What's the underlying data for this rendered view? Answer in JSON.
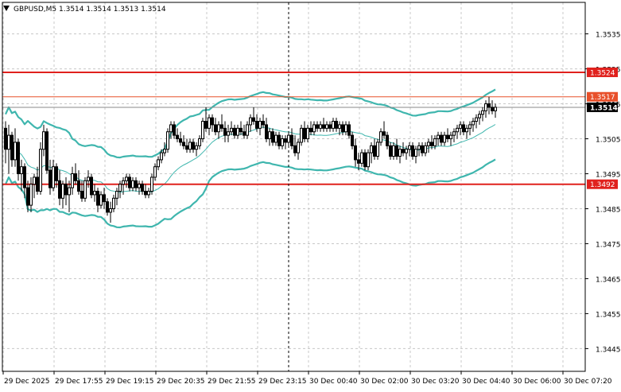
{
  "chart_title": "GBPUSD,M5  1.3514 1.3514 1.3513 1.3514",
  "colors": {
    "band": "#3fb6ae",
    "support_resistance": "#e0211d",
    "level_line": "#e8502a",
    "candles": "#000000",
    "price_tag": "#000000"
  },
  "icons": {
    "indicator_arrow": "triangle-down-icon"
  },
  "chart_data": {
    "type": "candlestick",
    "title": "GBPUSD,M5  1.3514 1.3514 1.3513 1.3514",
    "xlabel": "",
    "ylabel": "",
    "ylim": [
      1.34385,
      1.3544
    ],
    "ytick_values": [
      1.3535,
      1.3525,
      1.3515,
      1.3505,
      1.3495,
      1.3485,
      1.3475,
      1.3465,
      1.3455,
      1.3445
    ],
    "yticks": [
      "1.3535",
      "1.3525",
      "1.3515",
      "1.3505",
      "1.3495",
      "1.3485",
      "1.3475",
      "1.3465",
      "1.3455",
      "1.3445"
    ],
    "xticks": [
      "29 Dec 2025",
      "29 Dec 17:55",
      "29 Dec 19:15",
      "29 Dec 20:35",
      "29 Dec 21:55",
      "29 Dec 23:15",
      "30 Dec 00:40",
      "30 Dec 02:00",
      "30 Dec 03:20",
      "30 Dec 04:40",
      "30 Dec 06:00",
      "30 Dec 07:20"
    ],
    "xtick_bar_index": [
      0,
      16,
      32,
      48,
      64,
      80,
      96,
      112,
      128,
      144,
      160,
      176
    ],
    "grid": true,
    "price_tags": [
      {
        "label": "1.3524",
        "value": 1.3524,
        "style": "red"
      },
      {
        "label": "1.3517",
        "value": 1.3517,
        "style": "orange"
      },
      {
        "label": "1.3514",
        "value": 1.3514,
        "style": "black"
      },
      {
        "label": "1.3492",
        "value": 1.3492,
        "style": "red"
      }
    ],
    "horizontal_lines": [
      {
        "value": 1.3524,
        "style": "red-thick"
      },
      {
        "value": 1.3517,
        "style": "orange-thin"
      },
      {
        "value": 1.3514,
        "style": "gray-thin"
      },
      {
        "value": 1.3492,
        "style": "red-thick"
      }
    ],
    "vertical_line_bar_index": 89,
    "ohlc": [
      [
        1.3508,
        1.351,
        1.3498,
        1.3502
      ],
      [
        1.3502,
        1.3509,
        1.3495,
        1.3506
      ],
      [
        1.3506,
        1.3507,
        1.3497,
        1.3499
      ],
      [
        1.3499,
        1.3508,
        1.3497,
        1.3504
      ],
      [
        1.3504,
        1.3505,
        1.3493,
        1.3495
      ],
      [
        1.3495,
        1.3499,
        1.349,
        1.3497
      ],
      [
        1.3497,
        1.3498,
        1.3488,
        1.3491
      ],
      [
        1.3491,
        1.3493,
        1.3484,
        1.3486
      ],
      [
        1.3486,
        1.3494,
        1.3484,
        1.3492
      ],
      [
        1.3492,
        1.3495,
        1.3488,
        1.3494
      ],
      [
        1.3494,
        1.3497,
        1.3489,
        1.349
      ],
      [
        1.349,
        1.3504,
        1.3489,
        1.3502
      ],
      [
        1.3502,
        1.3509,
        1.35,
        1.3507
      ],
      [
        1.3507,
        1.3508,
        1.3495,
        1.3496
      ],
      [
        1.3496,
        1.3499,
        1.3489,
        1.3491
      ],
      [
        1.3491,
        1.3499,
        1.349,
        1.3497
      ],
      [
        1.3497,
        1.3498,
        1.3491,
        1.3493
      ],
      [
        1.3493,
        1.3496,
        1.3486,
        1.3488
      ],
      [
        1.3488,
        1.3493,
        1.3485,
        1.3492
      ],
      [
        1.3492,
        1.3494,
        1.3486,
        1.3489
      ],
      [
        1.3489,
        1.3493,
        1.3484,
        1.3491
      ],
      [
        1.3491,
        1.3497,
        1.3489,
        1.3495
      ],
      [
        1.3495,
        1.3498,
        1.3492,
        1.3493
      ],
      [
        1.3493,
        1.3496,
        1.3489,
        1.349
      ],
      [
        1.349,
        1.3493,
        1.3487,
        1.3488
      ],
      [
        1.3488,
        1.3494,
        1.3487,
        1.3493
      ],
      [
        1.3493,
        1.3496,
        1.3491,
        1.3494
      ],
      [
        1.3494,
        1.3495,
        1.3488,
        1.3489
      ],
      [
        1.3489,
        1.3492,
        1.3487,
        1.349
      ],
      [
        1.349,
        1.3491,
        1.3484,
        1.3486
      ],
      [
        1.3486,
        1.349,
        1.3485,
        1.3489
      ],
      [
        1.3489,
        1.3491,
        1.3485,
        1.3487
      ],
      [
        1.3487,
        1.3488,
        1.3483,
        1.3484
      ],
      [
        1.3484,
        1.3487,
        1.3481,
        1.3485
      ],
      [
        1.3485,
        1.3489,
        1.3484,
        1.3488
      ],
      [
        1.3488,
        1.3491,
        1.3486,
        1.349
      ],
      [
        1.349,
        1.3493,
        1.3488,
        1.3492
      ],
      [
        1.3492,
        1.3494,
        1.3489,
        1.3493
      ],
      [
        1.3493,
        1.3495,
        1.3491,
        1.3494
      ],
      [
        1.3494,
        1.3495,
        1.349,
        1.3491
      ],
      [
        1.3491,
        1.3494,
        1.349,
        1.3493
      ],
      [
        1.3493,
        1.3494,
        1.349,
        1.3491
      ],
      [
        1.3491,
        1.3493,
        1.3489,
        1.3492
      ],
      [
        1.3492,
        1.3493,
        1.3489,
        1.349
      ],
      [
        1.349,
        1.3492,
        1.3488,
        1.3489
      ],
      [
        1.3489,
        1.3491,
        1.3488,
        1.349
      ],
      [
        1.349,
        1.3495,
        1.3489,
        1.3494
      ],
      [
        1.3494,
        1.3498,
        1.3493,
        1.3497
      ],
      [
        1.3497,
        1.35,
        1.3496,
        1.3499
      ],
      [
        1.3499,
        1.3502,
        1.3498,
        1.3501
      ],
      [
        1.3501,
        1.3504,
        1.35,
        1.3502
      ],
      [
        1.3502,
        1.3508,
        1.3501,
        1.3507
      ],
      [
        1.3507,
        1.351,
        1.3505,
        1.3509
      ],
      [
        1.3509,
        1.351,
        1.3505,
        1.3506
      ],
      [
        1.3506,
        1.3508,
        1.3504,
        1.3505
      ],
      [
        1.3505,
        1.3507,
        1.3503,
        1.3504
      ],
      [
        1.3504,
        1.3506,
        1.3502,
        1.3503
      ],
      [
        1.3503,
        1.3505,
        1.3501,
        1.3502
      ],
      [
        1.3502,
        1.3505,
        1.3501,
        1.3504
      ],
      [
        1.3504,
        1.3505,
        1.3501,
        1.3502
      ],
      [
        1.3502,
        1.3504,
        1.35,
        1.3503
      ],
      [
        1.3503,
        1.3506,
        1.3502,
        1.3505
      ],
      [
        1.3505,
        1.3511,
        1.3504,
        1.351
      ],
      [
        1.351,
        1.3514,
        1.3507,
        1.3508
      ],
      [
        1.3508,
        1.3512,
        1.3506,
        1.3511
      ],
      [
        1.3511,
        1.3512,
        1.3507,
        1.3509
      ],
      [
        1.3509,
        1.3511,
        1.3506,
        1.3507
      ],
      [
        1.3507,
        1.351,
        1.3505,
        1.3509
      ],
      [
        1.3509,
        1.3512,
        1.3507,
        1.3508
      ],
      [
        1.3508,
        1.351,
        1.3504,
        1.3506
      ],
      [
        1.3506,
        1.3509,
        1.3504,
        1.3507
      ],
      [
        1.3507,
        1.351,
        1.3506,
        1.3508
      ],
      [
        1.3508,
        1.3509,
        1.3505,
        1.3506
      ],
      [
        1.3506,
        1.3509,
        1.3505,
        1.3508
      ],
      [
        1.3508,
        1.351,
        1.3506,
        1.3507
      ],
      [
        1.3507,
        1.3509,
        1.3505,
        1.3506
      ],
      [
        1.3506,
        1.351,
        1.3505,
        1.3509
      ],
      [
        1.3509,
        1.3512,
        1.3507,
        1.3511
      ],
      [
        1.3511,
        1.3514,
        1.3509,
        1.351
      ],
      [
        1.351,
        1.3512,
        1.3507,
        1.3508
      ],
      [
        1.3508,
        1.3511,
        1.3506,
        1.351
      ],
      [
        1.351,
        1.3512,
        1.3508,
        1.3509
      ],
      [
        1.3509,
        1.3511,
        1.3504,
        1.3505
      ],
      [
        1.3505,
        1.3508,
        1.3503,
        1.3507
      ],
      [
        1.3507,
        1.3508,
        1.3503,
        1.3504
      ],
      [
        1.3504,
        1.3507,
        1.3503,
        1.3506
      ],
      [
        1.3506,
        1.3507,
        1.3502,
        1.3503
      ],
      [
        1.3503,
        1.3506,
        1.3502,
        1.3505
      ],
      [
        1.3505,
        1.3506,
        1.3502,
        1.3504
      ],
      [
        1.3504,
        1.3507,
        1.3503,
        1.3506
      ],
      [
        1.3506,
        1.3508,
        1.3502,
        1.3503
      ],
      [
        1.3503,
        1.3506,
        1.35,
        1.3501
      ],
      [
        1.3501,
        1.3505,
        1.3499,
        1.3504
      ],
      [
        1.3504,
        1.3509,
        1.3503,
        1.3508
      ],
      [
        1.3508,
        1.351,
        1.3504,
        1.3505
      ],
      [
        1.3505,
        1.3509,
        1.3504,
        1.3508
      ],
      [
        1.3508,
        1.351,
        1.3506,
        1.3507
      ],
      [
        1.3507,
        1.351,
        1.3506,
        1.3509
      ],
      [
        1.3509,
        1.351,
        1.3507,
        1.3508
      ],
      [
        1.3508,
        1.351,
        1.3507,
        1.3509
      ],
      [
        1.3509,
        1.3511,
        1.3507,
        1.3508
      ],
      [
        1.3508,
        1.351,
        1.3507,
        1.3509
      ],
      [
        1.3509,
        1.351,
        1.3507,
        1.3508
      ],
      [
        1.3508,
        1.3511,
        1.3507,
        1.351
      ],
      [
        1.351,
        1.3511,
        1.3507,
        1.3508
      ],
      [
        1.3508,
        1.351,
        1.3506,
        1.3509
      ],
      [
        1.3509,
        1.351,
        1.3506,
        1.3507
      ],
      [
        1.3507,
        1.351,
        1.3506,
        1.3509
      ],
      [
        1.3509,
        1.351,
        1.3505,
        1.3506
      ],
      [
        1.3506,
        1.3507,
        1.3502,
        1.3503
      ],
      [
        1.3503,
        1.3505,
        1.3497,
        1.3499
      ],
      [
        1.3499,
        1.3501,
        1.3496,
        1.3498
      ],
      [
        1.3498,
        1.3502,
        1.3497,
        1.3501
      ],
      [
        1.3501,
        1.3502,
        1.3496,
        1.3497
      ],
      [
        1.3497,
        1.3502,
        1.3496,
        1.3501
      ],
      [
        1.3501,
        1.3504,
        1.3498,
        1.3503
      ],
      [
        1.3503,
        1.3505,
        1.3499,
        1.35
      ],
      [
        1.35,
        1.3505,
        1.3499,
        1.3504
      ],
      [
        1.3504,
        1.3508,
        1.3503,
        1.3507
      ],
      [
        1.3507,
        1.351,
        1.3505,
        1.3506
      ],
      [
        1.3506,
        1.3507,
        1.3502,
        1.3503
      ],
      [
        1.3503,
        1.3504,
        1.3499,
        1.35
      ],
      [
        1.35,
        1.3504,
        1.3499,
        1.3503
      ],
      [
        1.3503,
        1.3505,
        1.3499,
        1.35
      ],
      [
        1.35,
        1.3503,
        1.3498,
        1.3502
      ],
      [
        1.3502,
        1.3504,
        1.35,
        1.3501
      ],
      [
        1.3501,
        1.3503,
        1.3499,
        1.3502
      ],
      [
        1.3502,
        1.3504,
        1.35,
        1.3503
      ],
      [
        1.3503,
        1.3504,
        1.3499,
        1.35
      ],
      [
        1.35,
        1.3503,
        1.3498,
        1.3502
      ],
      [
        1.3502,
        1.3504,
        1.35,
        1.3503
      ],
      [
        1.3503,
        1.3504,
        1.35,
        1.3501
      ],
      [
        1.3501,
        1.3504,
        1.35,
        1.3503
      ],
      [
        1.3503,
        1.3505,
        1.3501,
        1.3504
      ],
      [
        1.3504,
        1.3506,
        1.3502,
        1.3503
      ],
      [
        1.3503,
        1.3506,
        1.3502,
        1.3505
      ],
      [
        1.3505,
        1.3507,
        1.3503,
        1.3506
      ],
      [
        1.3506,
        1.3507,
        1.3503,
        1.3504
      ],
      [
        1.3504,
        1.3507,
        1.3503,
        1.3506
      ],
      [
        1.3506,
        1.3508,
        1.3504,
        1.3505
      ],
      [
        1.3505,
        1.3507,
        1.3503,
        1.3506
      ],
      [
        1.3506,
        1.3508,
        1.3504,
        1.3507
      ],
      [
        1.3507,
        1.3509,
        1.3505,
        1.3508
      ],
      [
        1.3508,
        1.351,
        1.3506,
        1.3509
      ],
      [
        1.3509,
        1.351,
        1.3506,
        1.3507
      ],
      [
        1.3507,
        1.3509,
        1.3505,
        1.3508
      ],
      [
        1.3508,
        1.351,
        1.3506,
        1.3509
      ],
      [
        1.3509,
        1.3511,
        1.3507,
        1.351
      ],
      [
        1.351,
        1.3512,
        1.3508,
        1.3511
      ],
      [
        1.3511,
        1.3513,
        1.3509,
        1.3512
      ],
      [
        1.3512,
        1.3514,
        1.351,
        1.3513
      ],
      [
        1.3513,
        1.3516,
        1.3511,
        1.3515
      ],
      [
        1.3515,
        1.3517,
        1.3512,
        1.3514
      ],
      [
        1.3514,
        1.3516,
        1.3512,
        1.3513
      ],
      [
        1.3513,
        1.3515,
        1.3511,
        1.3514
      ]
    ]
  }
}
